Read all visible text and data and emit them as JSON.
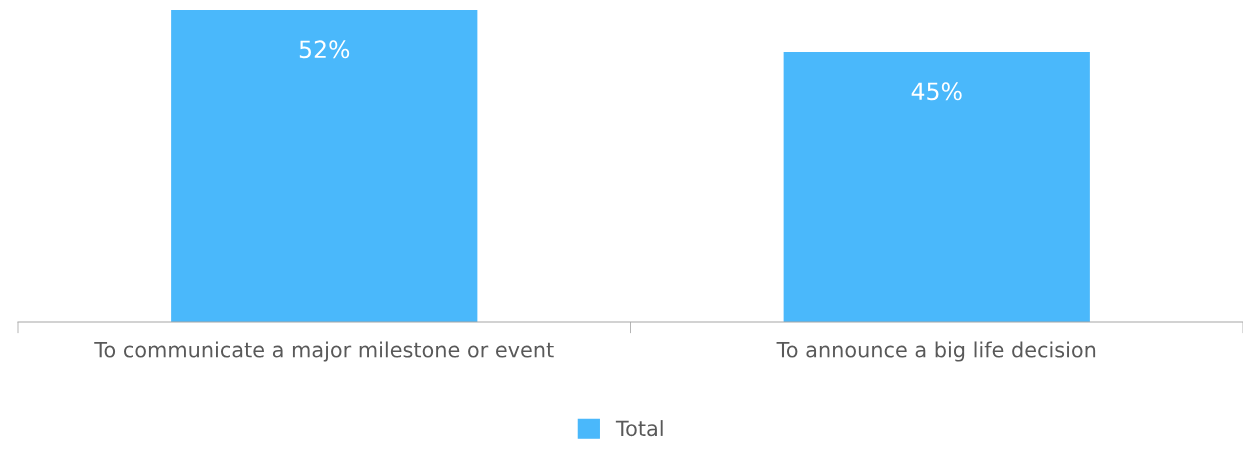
{
  "chart_data": {
    "type": "bar",
    "categories": [
      "To communicate a major milestone or event",
      "To announce a big life decision"
    ],
    "series": [
      {
        "name": "Total",
        "color": "#4ab8fb",
        "values": [
          52,
          45
        ],
        "value_labels": [
          "52%",
          "45%"
        ]
      }
    ],
    "ylim": [
      0,
      52
    ],
    "tick_labels": "x",
    "grid": false,
    "legend": "bottom"
  }
}
